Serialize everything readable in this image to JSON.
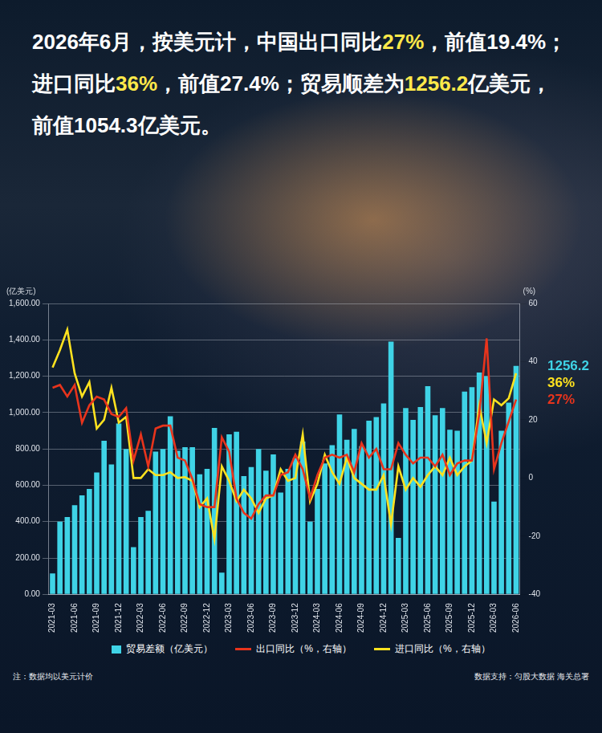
{
  "chart_data": {
    "type": "bar",
    "title": "2026年6月，按美元计，中国出口同比27%，前值19.4%；进口同比36%，前值27.4%；贸易顺差为1256.2亿美元，前值1054.3亿美元。",
    "y_label": "(亿美元)",
    "y2_label": "(%)",
    "note": "注：数据均以美元计价",
    "source": "数据支持：匀股大数据 海关总署",
    "categories": [
      "2021-03",
      null,
      null,
      "2021-06",
      null,
      null,
      "2021-09",
      null,
      null,
      "2021-12",
      null,
      null,
      "2022-03",
      null,
      null,
      "2022-06",
      null,
      null,
      "2022-09",
      null,
      null,
      "2022-12",
      null,
      null,
      "2023-03",
      null,
      null,
      "2023-06",
      null,
      null,
      "2023-09",
      null,
      null,
      "2023-12",
      null,
      null,
      "2024-03",
      null,
      null,
      "2024-06",
      null,
      null,
      "2024-09",
      null,
      null,
      "2024-12",
      null,
      null,
      "2025-03",
      null,
      null,
      "2025-06",
      null,
      null,
      "2025-09",
      null,
      null,
      "2025-12",
      null,
      null,
      "2026-03",
      null,
      null,
      "2026-06"
    ],
    "series": [
      {
        "name": "贸易差额（亿美元）",
        "type": "bar",
        "color": "#3fd3e6",
        "values": [
          115,
          400,
          425,
          490,
          545,
          580,
          670,
          845,
          715,
          940,
          800,
          260,
          425,
          460,
          785,
          800,
          980,
          790,
          810,
          810,
          660,
          690,
          915,
          120,
          880,
          895,
          650,
          700,
          800,
          680,
          770,
          560,
          690,
          750,
          840,
          400,
          580,
          720,
          820,
          990,
          850,
          910,
          815,
          955,
          975,
          1050,
          1390,
          310,
          1025,
          960,
          1030,
          1145,
          985,
          1025,
          905,
          900,
          1115,
          1140,
          1220,
          1200,
          510,
          900,
          1054.3,
          1256.2
        ]
      },
      {
        "name": "出口同比（%，右轴）",
        "type": "line",
        "color": "#e8341c",
        "axis": "y2",
        "values": [
          31,
          32,
          28,
          32,
          19,
          25,
          28,
          27,
          22,
          21,
          24,
          6,
          15,
          4,
          17,
          18,
          18,
          7,
          6,
          -0.3,
          -9,
          -10,
          -10,
          14,
          9,
          -7,
          -12,
          -14,
          -9,
          -6,
          -6,
          1,
          2,
          8,
          3,
          -7,
          1,
          7,
          8,
          7,
          8,
          2,
          12,
          7,
          10,
          3,
          3,
          12,
          8,
          5,
          7,
          7,
          4,
          8,
          1,
          5,
          6,
          6,
          22,
          48,
          3,
          12,
          19.4,
          27
        ]
      },
      {
        "name": "进口同比（%，右轴）",
        "type": "line",
        "color": "#ffe21f",
        "axis": "y2",
        "values": [
          38,
          44,
          51,
          36,
          28,
          33,
          17,
          20,
          31,
          19,
          21,
          0,
          0,
          3,
          1,
          1,
          2,
          0,
          0.3,
          -1,
          -10,
          -7,
          -21,
          4,
          -1,
          -8,
          -4,
          -7,
          -12,
          -7,
          -6,
          3,
          -1,
          0,
          15,
          -8,
          -2,
          8,
          2,
          -2,
          7,
          0,
          -2,
          -4,
          -4,
          1,
          -16,
          4,
          -4,
          0,
          -3,
          1,
          4,
          1,
          7,
          1,
          4,
          6,
          25,
          12,
          27,
          25,
          27.4,
          36
        ]
      }
    ],
    "ylim": [
      0,
      1600
    ],
    "yticks": [
      {
        "value": 0,
        "label": "0.00"
      },
      {
        "value": 200,
        "label": "200.00"
      },
      {
        "value": 400,
        "label": "400.00"
      },
      {
        "value": 600,
        "label": "600.00"
      },
      {
        "value": 800,
        "label": "800.00"
      },
      {
        "value": 1000,
        "label": "1,000.00"
      },
      {
        "value": 1200,
        "label": "1,200.00"
      },
      {
        "value": 1400,
        "label": "1,400.00"
      },
      {
        "value": 1600,
        "label": "1,600.00"
      }
    ],
    "y2lim": [
      -40,
      60
    ],
    "y2ticks": [
      -40,
      -20,
      0,
      20,
      40,
      60
    ],
    "annotations": [
      {
        "text": "1256.2",
        "series": "贸易差额（亿美元）"
      },
      {
        "text": "36%",
        "series": "进口同比（%，右轴）"
      },
      {
        "text": "27%",
        "series": "出口同比（%，右轴）"
      }
    ],
    "grid": true,
    "legend": "bottom"
  }
}
